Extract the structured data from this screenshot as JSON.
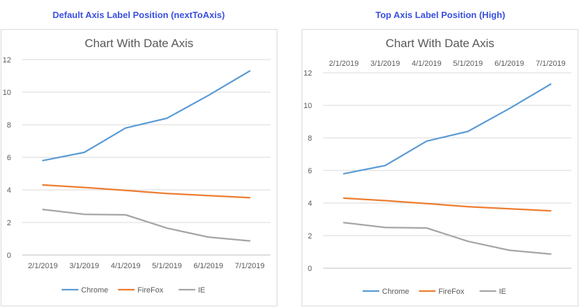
{
  "captions": {
    "left": "Default Axis Label Position (nextToAxis)",
    "right": "Top Axis Label Position (High)"
  },
  "chart_data": [
    {
      "type": "line",
      "title": "Chart With Date Axis",
      "x": [
        "2/1/2019",
        "3/1/2019",
        "4/1/2019",
        "5/1/2019",
        "6/1/2019",
        "7/1/2019"
      ],
      "x_label_position": "bottom",
      "yticks": [
        "0",
        "2",
        "4",
        "6",
        "8",
        "10",
        "12"
      ],
      "ylim": [
        0,
        12
      ],
      "grid": true,
      "legend": "bottom",
      "series": [
        {
          "name": "Chrome",
          "color": "#5b9bd5",
          "values": [
            5.8,
            6.3,
            7.8,
            8.4,
            9.8,
            11.3
          ]
        },
        {
          "name": "FireFox",
          "color": "#ed7d31",
          "values": [
            4.3,
            4.15,
            3.97,
            3.78,
            3.65,
            3.52
          ]
        },
        {
          "name": "IE",
          "color": "#a5a5a5",
          "values": [
            2.8,
            2.5,
            2.47,
            1.65,
            1.1,
            0.87
          ]
        }
      ]
    },
    {
      "type": "line",
      "title": "Chart With Date Axis",
      "x": [
        "2/1/2019",
        "3/1/2019",
        "4/1/2019",
        "5/1/2019",
        "6/1/2019",
        "7/1/2019"
      ],
      "x_label_position": "top",
      "yticks": [
        "0",
        "2",
        "4",
        "6",
        "8",
        "10",
        "12"
      ],
      "ylim": [
        0,
        12
      ],
      "grid": true,
      "legend": "bottom",
      "series": [
        {
          "name": "Chrome",
          "color": "#5b9bd5",
          "values": [
            5.8,
            6.3,
            7.8,
            8.4,
            9.8,
            11.3
          ]
        },
        {
          "name": "FireFox",
          "color": "#ed7d31",
          "values": [
            4.3,
            4.15,
            3.97,
            3.78,
            3.65,
            3.52
          ]
        },
        {
          "name": "IE",
          "color": "#a5a5a5",
          "values": [
            2.8,
            2.5,
            2.47,
            1.65,
            1.1,
            0.87
          ]
        }
      ]
    }
  ]
}
